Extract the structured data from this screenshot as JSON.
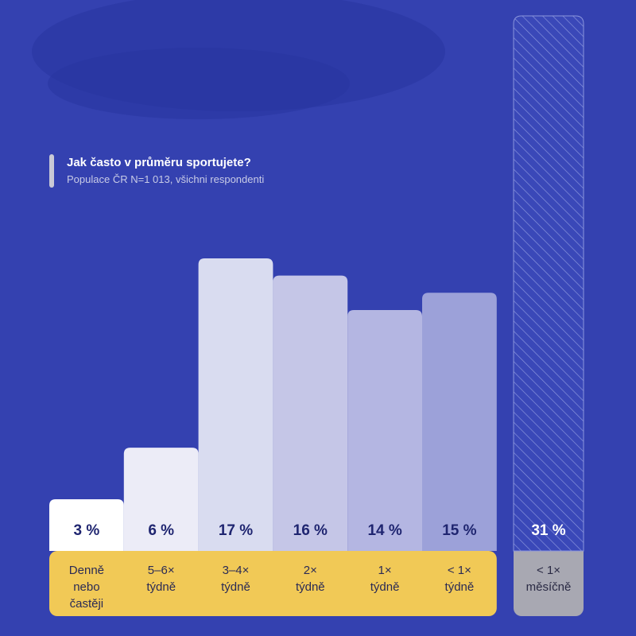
{
  "chart_data": {
    "type": "bar",
    "title": "Jak často v průměru sportujete?",
    "subtitle": "Populace ČR N=1 013, všichni respondenti",
    "xlabel": "",
    "ylabel": "",
    "ylim": [
      0,
      17
    ],
    "unit": "%",
    "grid": false,
    "categories": [
      [
        "Denně",
        "nebo",
        "častěji"
      ],
      [
        "5–6×",
        "týdně"
      ],
      [
        "3–4×",
        "týdně"
      ],
      [
        "2×",
        "týdně"
      ],
      [
        "1×",
        "týdně"
      ],
      [
        "< 1×",
        "týdně"
      ]
    ],
    "value_labels": [
      "3 %",
      "6 %",
      "17 %",
      "16 %",
      "14 %",
      "15 %"
    ],
    "values": [
      3,
      6,
      17,
      16,
      14,
      15
    ],
    "colors": [
      "#ffffff",
      "#ececf7",
      "#d9dcf0",
      "#c5c6e7",
      "#b4b6e2",
      "#9ca1d9"
    ],
    "separate": {
      "category": [
        "< 1×",
        "měsíčně"
      ],
      "value": 31,
      "value_label": "31 %",
      "style": "hatched"
    },
    "category_band_color": "#f1c956",
    "separate_band_color": "#a8a8b2"
  }
}
